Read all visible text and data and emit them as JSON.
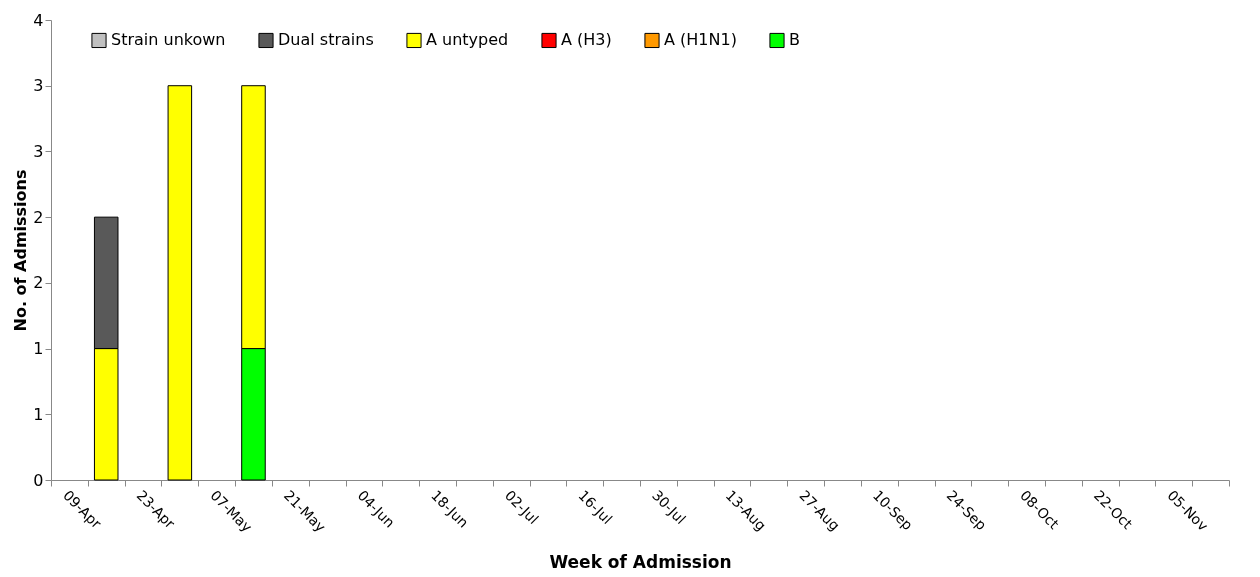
{
  "chart_data": {
    "type": "bar",
    "stacked": true,
    "xlabel": "Week of Admission",
    "ylabel": "No. of Admissions",
    "categories": [
      "09-Apr",
      null,
      "23-Apr",
      null,
      "07-May",
      null,
      "21-May",
      null,
      "04-Jun",
      null,
      "18-Jun",
      null,
      "02-Jul",
      null,
      "16-Jul",
      null,
      "30-Jul",
      null,
      "13-Aug",
      null,
      "27-Aug",
      null,
      "10-Sep",
      null,
      "24-Sep",
      null,
      "08-Oct",
      null,
      "22-Oct",
      null,
      "05-Nov",
      null
    ],
    "series": [
      {
        "name": "B",
        "color": "#00ff00",
        "values": [
          null,
          null,
          null,
          null,
          null,
          1,
          null,
          null,
          null,
          null,
          null,
          null,
          null,
          null,
          null,
          null,
          null,
          null,
          null,
          null,
          null,
          null,
          null,
          null,
          null,
          null,
          null,
          null,
          null,
          null,
          null,
          null
        ]
      },
      {
        "name": "A (H1N1)",
        "color": "#ff9900",
        "values": [
          null,
          null,
          null,
          null,
          null,
          null,
          null,
          null,
          null,
          null,
          null,
          null,
          null,
          null,
          null,
          null,
          null,
          null,
          null,
          null,
          null,
          null,
          null,
          null,
          null,
          null,
          null,
          null,
          null,
          null,
          null,
          null
        ]
      },
      {
        "name": "A (H3)",
        "color": "#ff0000",
        "values": [
          null,
          null,
          null,
          null,
          null,
          null,
          null,
          null,
          null,
          null,
          null,
          null,
          null,
          null,
          null,
          null,
          null,
          null,
          null,
          null,
          null,
          null,
          null,
          null,
          null,
          null,
          null,
          null,
          null,
          null,
          null,
          null
        ]
      },
      {
        "name": "A untyped",
        "color": "#ffff00",
        "values": [
          null,
          1,
          null,
          3,
          null,
          2,
          null,
          null,
          null,
          null,
          null,
          null,
          null,
          null,
          null,
          null,
          null,
          null,
          null,
          null,
          null,
          null,
          null,
          null,
          null,
          null,
          null,
          null,
          null,
          null,
          null,
          null
        ]
      },
      {
        "name": "Dual strains",
        "color": "#595959",
        "values": [
          null,
          1,
          null,
          null,
          null,
          null,
          null,
          null,
          null,
          null,
          null,
          null,
          null,
          null,
          null,
          null,
          null,
          null,
          null,
          null,
          null,
          null,
          null,
          null,
          null,
          null,
          null,
          null,
          null,
          null,
          null,
          null
        ]
      },
      {
        "name": "Strain unkown",
        "color": "#c0c0c0",
        "values": [
          null,
          null,
          null,
          null,
          null,
          null,
          null,
          null,
          null,
          null,
          null,
          null,
          null,
          null,
          null,
          null,
          null,
          null,
          null,
          null,
          null,
          null,
          null,
          null,
          null,
          null,
          null,
          null,
          null,
          null,
          null,
          null
        ]
      }
    ],
    "ylim": [
      0,
      3.5
    ],
    "yticks": [
      0,
      {
        "value": 0.5,
        "label": "1"
      },
      1,
      {
        "value": 1.5,
        "label": "2"
      },
      2,
      {
        "value": 2.5,
        "label": "3"
      },
      3,
      {
        "value": 3.5,
        "label": "4"
      }
    ],
    "legend": "top"
  }
}
